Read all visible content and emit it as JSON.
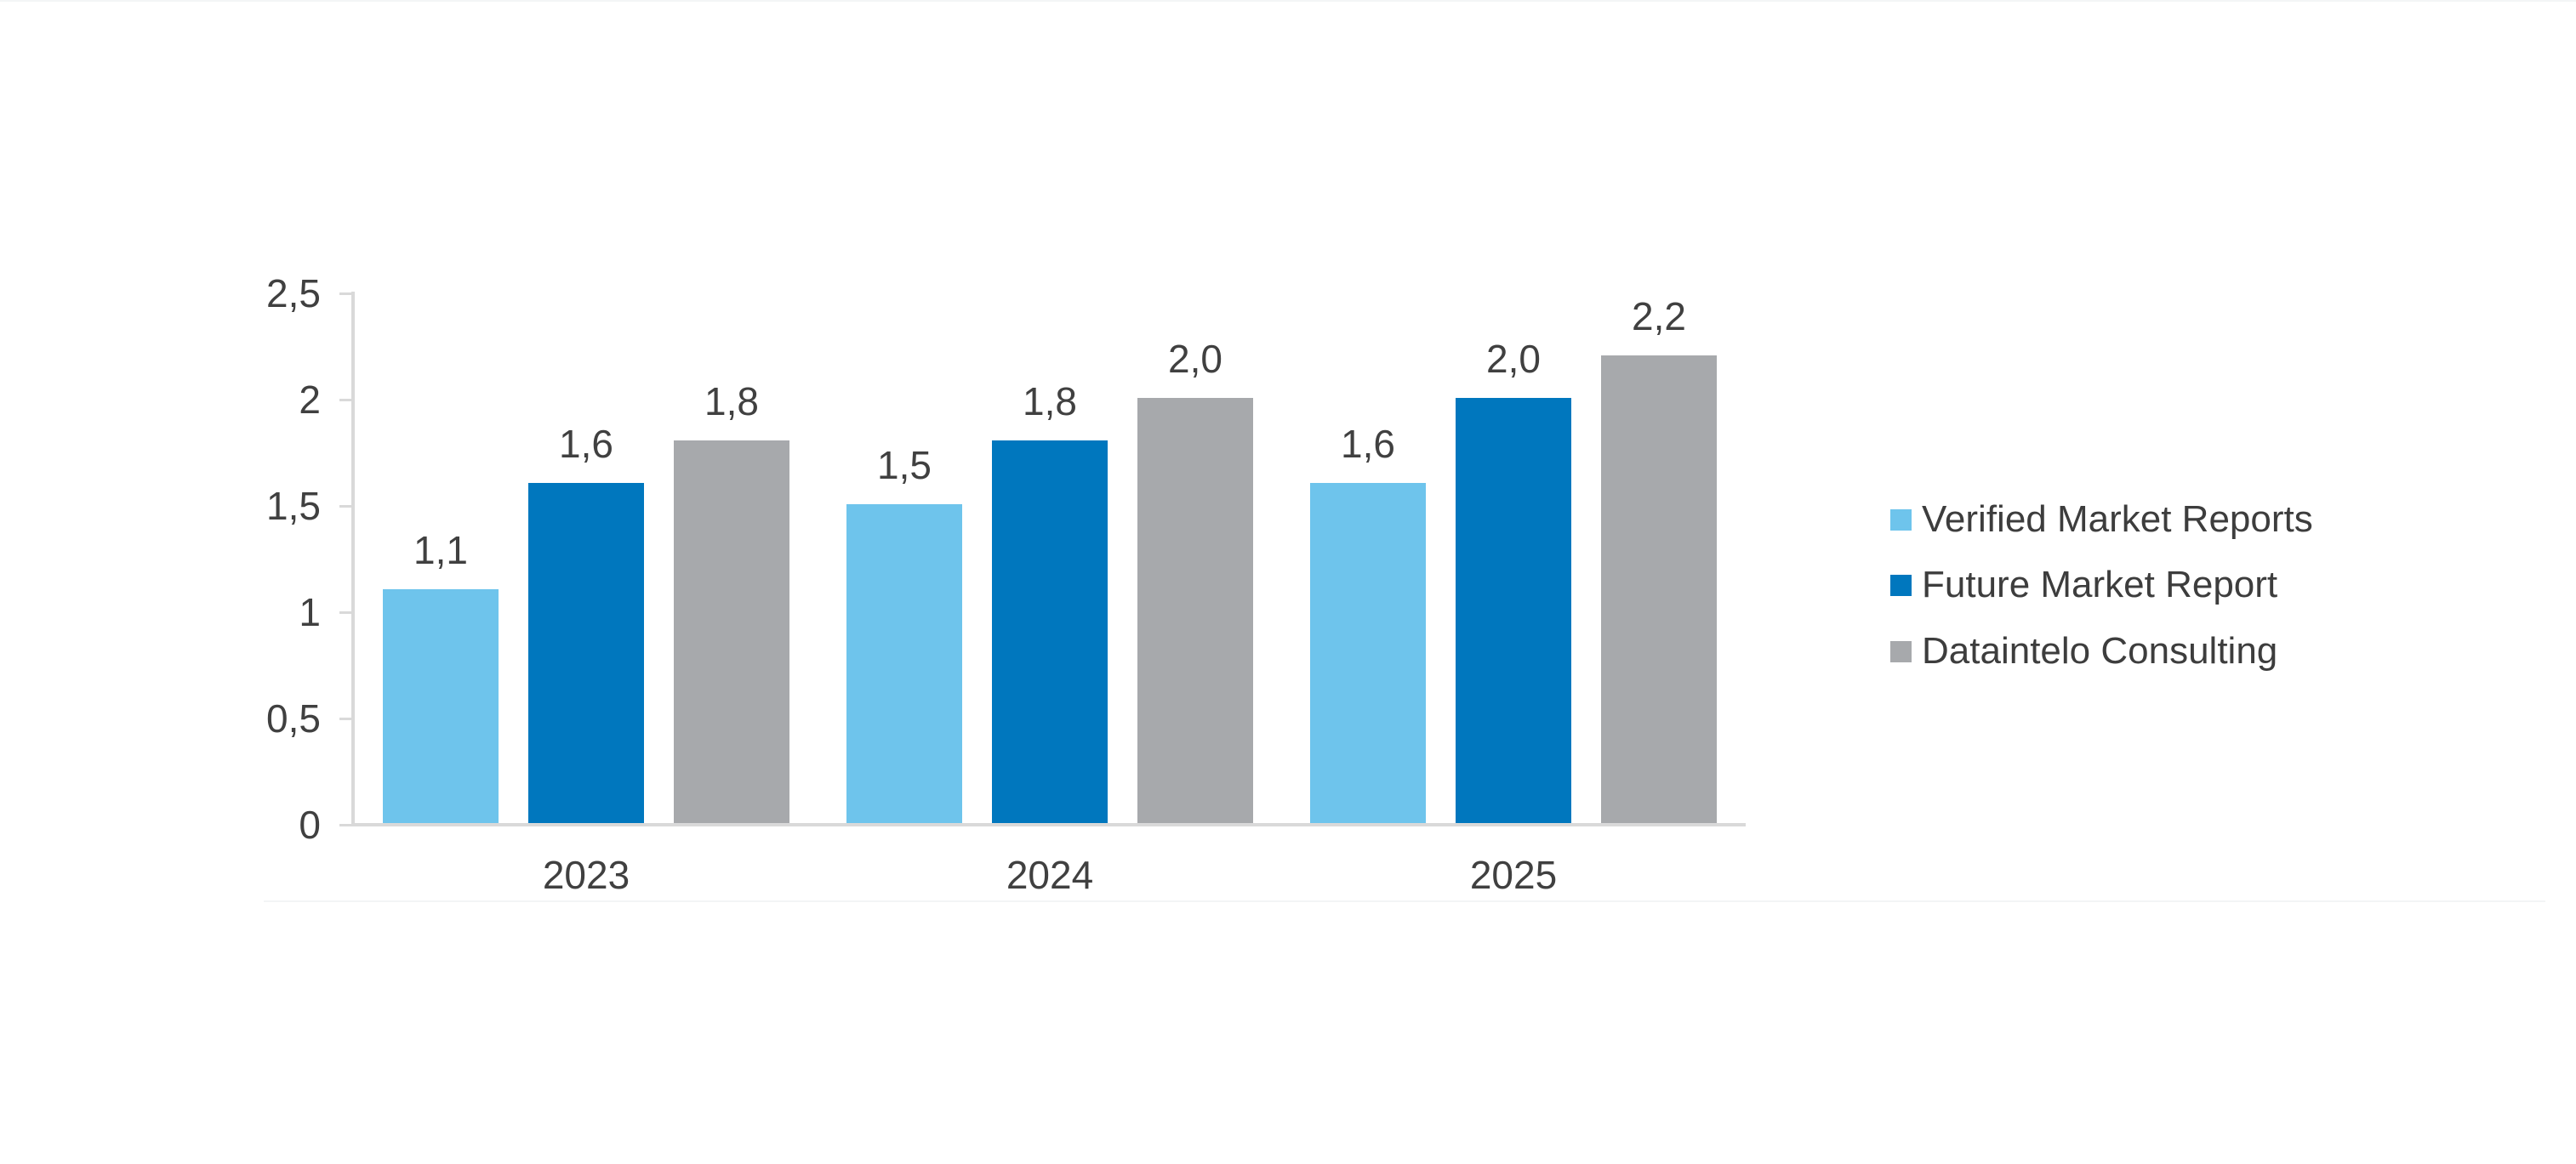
{
  "page": {
    "background": "#ffffff"
  },
  "chart_data": {
    "type": "bar",
    "title": "",
    "xlabel": "",
    "ylabel": "",
    "categories": [
      "2023",
      "2024",
      "2025"
    ],
    "series": [
      {
        "name": "Verified Market Reports",
        "color": "#6ec4ec",
        "values": [
          1.1,
          1.5,
          1.6
        ],
        "value_labels": [
          "1,1",
          "1,5",
          "1,6"
        ]
      },
      {
        "name": "Future Market Report",
        "color": "#0077be",
        "values": [
          1.6,
          1.8,
          2.0
        ],
        "value_labels": [
          "1,6",
          "1,8",
          "2,0"
        ]
      },
      {
        "name": "Dataintelo Consulting",
        "color": "#a7a9ac",
        "values": [
          1.8,
          2.0,
          2.2
        ],
        "value_labels": [
          "1,8",
          "2,0",
          "2,2"
        ]
      }
    ],
    "y_axis": {
      "min": 0,
      "max": 2.5,
      "step": 0.5,
      "tick_labels": [
        "0",
        "0,5",
        "1",
        "1,5",
        "2",
        "2,5"
      ]
    },
    "x_axis": {
      "tick_labels": [
        "2023",
        "2024",
        "2025"
      ]
    },
    "legend": {
      "position": "right",
      "items": [
        "Verified Market Reports",
        "Future Market Report",
        "Dataintelo Consulting"
      ]
    },
    "grid": false,
    "axis_color": "#d9d9d9",
    "text_color": "#404040"
  }
}
